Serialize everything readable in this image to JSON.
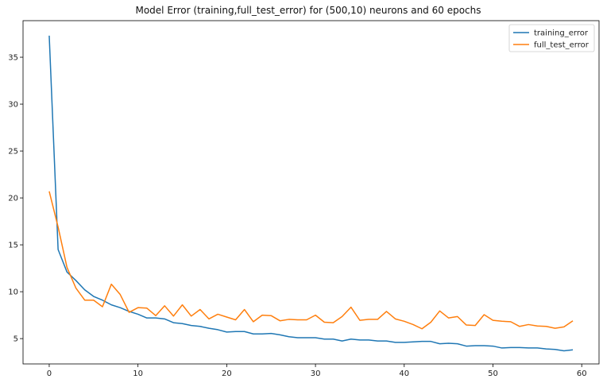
{
  "chart_data": {
    "type": "line",
    "title": "Model Error (training,full_test_error) for (500,10) neurons and 60 epochs",
    "xlabel": "",
    "ylabel": "",
    "xlim": [
      -2.95,
      61.95
    ],
    "ylim": [
      2.3,
      38.9
    ],
    "xticks": [
      0,
      10,
      20,
      30,
      40,
      50,
      60
    ],
    "yticks": [
      5,
      10,
      15,
      20,
      25,
      30,
      35
    ],
    "grid": false,
    "legend_position": "top-right",
    "x": [
      0,
      1,
      2,
      3,
      4,
      5,
      6,
      7,
      8,
      9,
      10,
      11,
      12,
      13,
      14,
      15,
      16,
      17,
      18,
      19,
      20,
      21,
      22,
      23,
      24,
      25,
      26,
      27,
      28,
      29,
      30,
      31,
      32,
      33,
      34,
      35,
      36,
      37,
      38,
      39,
      40,
      41,
      42,
      43,
      44,
      45,
      46,
      47,
      48,
      49,
      50,
      51,
      52,
      53,
      54,
      55,
      56,
      57,
      58,
      59
    ],
    "series": [
      {
        "name": "training_error",
        "color": "#1f77b4",
        "values": [
          37.3,
          14.5,
          12.1,
          11.2,
          10.2,
          9.5,
          9.1,
          8.6,
          8.3,
          7.9,
          7.6,
          7.2,
          7.2,
          7.1,
          6.7,
          6.6,
          6.4,
          6.3,
          6.1,
          5.95,
          5.7,
          5.75,
          5.75,
          5.5,
          5.5,
          5.55,
          5.4,
          5.2,
          5.1,
          5.1,
          5.1,
          4.95,
          4.95,
          4.75,
          4.95,
          4.85,
          4.85,
          4.75,
          4.75,
          4.6,
          4.6,
          4.65,
          4.7,
          4.7,
          4.45,
          4.5,
          4.45,
          4.2,
          4.25,
          4.25,
          4.2,
          4.0,
          4.05,
          4.05,
          4.0,
          4.0,
          3.9,
          3.85,
          3.7,
          3.8
        ]
      },
      {
        "name": "full_test_error",
        "color": "#ff7f0e",
        "values": [
          20.7,
          16.9,
          12.6,
          10.4,
          9.1,
          9.1,
          8.4,
          10.8,
          9.7,
          7.8,
          8.3,
          8.25,
          7.45,
          8.5,
          7.4,
          8.6,
          7.4,
          8.1,
          7.1,
          7.6,
          7.3,
          7.0,
          8.1,
          6.8,
          7.5,
          7.45,
          6.9,
          7.05,
          7.0,
          7.0,
          7.5,
          6.75,
          6.7,
          7.35,
          8.35,
          6.95,
          7.05,
          7.05,
          7.9,
          7.1,
          6.85,
          6.5,
          6.05,
          6.75,
          7.95,
          7.2,
          7.35,
          6.45,
          6.4,
          7.55,
          6.95,
          6.85,
          6.8,
          6.3,
          6.5,
          6.35,
          6.3,
          6.1,
          6.25,
          6.9
        ]
      }
    ]
  }
}
